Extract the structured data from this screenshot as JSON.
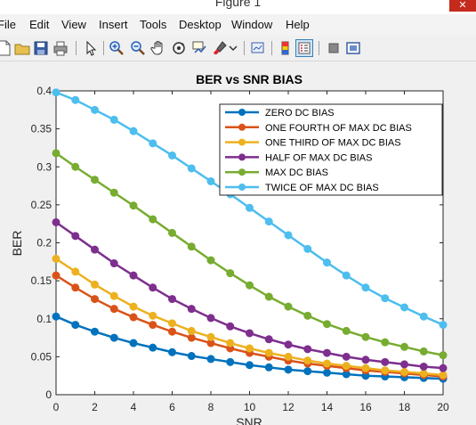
{
  "window": {
    "title": "Figure 1",
    "close_label": "✕"
  },
  "menu": [
    "File",
    "Edit",
    "View",
    "Insert",
    "Tools",
    "Desktop",
    "Window",
    "Help"
  ],
  "toolbar_icons": [
    "new-figure-icon",
    "open-file-icon",
    "save-icon",
    "print-icon",
    "pointer-icon",
    "zoom-in-icon",
    "zoom-out-icon",
    "pan-hand-icon",
    "rotate-3d-icon",
    "data-cursor-icon",
    "brush-icon",
    "link-plot-icon",
    "colorbar-icon",
    "legend-icon",
    "hide-plot-tools-icon",
    "show-plot-tools-icon"
  ],
  "colors": {
    "zero": "#0072bd",
    "fourth": "#d95319",
    "third": "#edb120",
    "half": "#7e2f8e",
    "max": "#77ac30",
    "twice": "#4dbeee"
  },
  "chart_data": {
    "type": "line",
    "title": "BER vs SNR BIAS",
    "xlabel": "SNR",
    "ylabel": "BER",
    "xlim": [
      0,
      20
    ],
    "ylim": [
      0,
      0.4
    ],
    "xticks": [
      "0",
      "2",
      "4",
      "6",
      "8",
      "10",
      "12",
      "14",
      "16",
      "18",
      "20"
    ],
    "yticks": [
      "0",
      "0.05",
      "0.1",
      "0.15",
      "0.2",
      "0.25",
      "0.3",
      "0.35",
      "0.4"
    ],
    "x": [
      0,
      1,
      2,
      3,
      4,
      5,
      6,
      7,
      8,
      9,
      10,
      11,
      12,
      13,
      14,
      15,
      16,
      17,
      18,
      19,
      20
    ],
    "legend_position": "top-right",
    "series": [
      {
        "name": "ZERO DC BIAS",
        "color": "#0072bd",
        "values": [
          0.103,
          0.092,
          0.083,
          0.075,
          0.068,
          0.062,
          0.056,
          0.051,
          0.047,
          0.043,
          0.039,
          0.036,
          0.033,
          0.031,
          0.029,
          0.027,
          0.025,
          0.024,
          0.023,
          0.022,
          0.021
        ]
      },
      {
        "name": "ONE FOURTH OF MAX DC BIAS",
        "color": "#d95319",
        "values": [
          0.157,
          0.141,
          0.126,
          0.113,
          0.102,
          0.092,
          0.083,
          0.075,
          0.068,
          0.061,
          0.055,
          0.05,
          0.045,
          0.041,
          0.038,
          0.035,
          0.032,
          0.03,
          0.028,
          0.026,
          0.024
        ]
      },
      {
        "name": "ONE THIRD OF MAX DC BIAS",
        "color": "#edb120",
        "values": [
          0.179,
          0.162,
          0.145,
          0.13,
          0.116,
          0.104,
          0.094,
          0.084,
          0.076,
          0.068,
          0.061,
          0.055,
          0.05,
          0.045,
          0.041,
          0.038,
          0.035,
          0.032,
          0.03,
          0.028,
          0.026
        ]
      },
      {
        "name": "HALF OF MAX DC BIAS",
        "color": "#7e2f8e",
        "values": [
          0.227,
          0.209,
          0.191,
          0.173,
          0.157,
          0.141,
          0.126,
          0.113,
          0.101,
          0.09,
          0.081,
          0.073,
          0.066,
          0.06,
          0.055,
          0.05,
          0.046,
          0.043,
          0.04,
          0.037,
          0.035
        ]
      },
      {
        "name": "MAX DC BIAS",
        "color": "#77ac30",
        "values": [
          0.318,
          0.3,
          0.283,
          0.266,
          0.249,
          0.231,
          0.213,
          0.195,
          0.177,
          0.16,
          0.144,
          0.129,
          0.116,
          0.104,
          0.093,
          0.084,
          0.076,
          0.069,
          0.063,
          0.057,
          0.052
        ]
      },
      {
        "name": "TWICE OF MAX DC BIAS",
        "color": "#4dbeee",
        "values": [
          0.398,
          0.388,
          0.375,
          0.362,
          0.347,
          0.331,
          0.315,
          0.298,
          0.281,
          0.264,
          0.246,
          0.228,
          0.21,
          0.192,
          0.174,
          0.157,
          0.141,
          0.127,
          0.115,
          0.103,
          0.092
        ]
      }
    ]
  }
}
